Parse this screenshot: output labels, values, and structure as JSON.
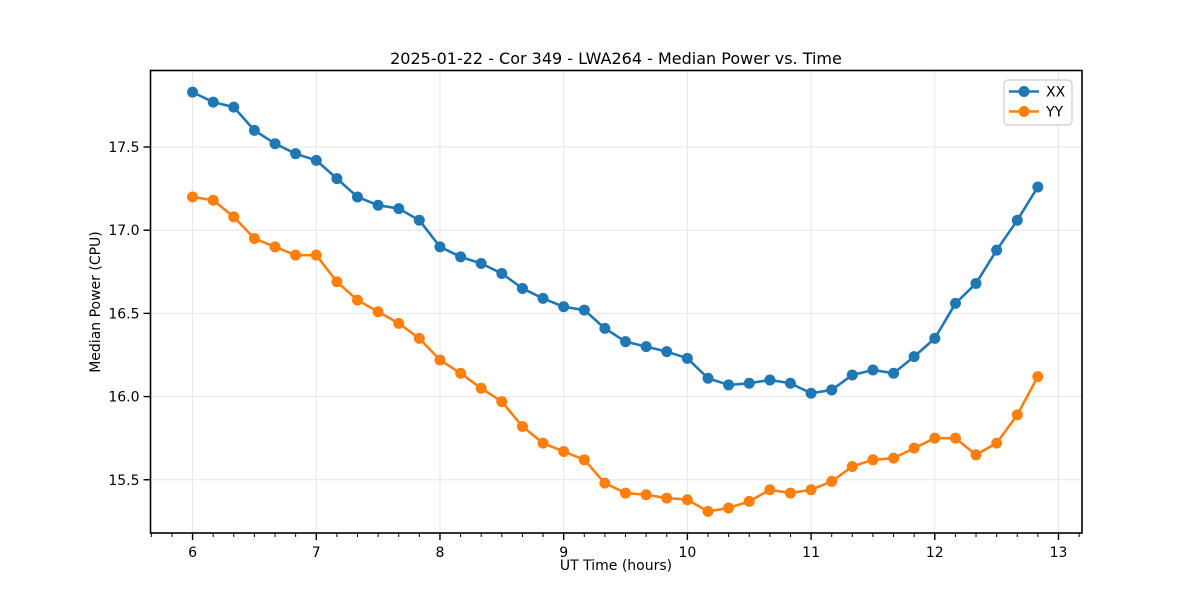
{
  "figure": {
    "title": "2025-01-22 - Cor 349 - LWA264 - Median Power vs. Time",
    "xlabel": "UT Time (hours)",
    "ylabel": "Median Power (CPU)"
  },
  "style": {
    "background": "#ffffff",
    "grid_color": "#e6e6e6",
    "spine_color": "#000000",
    "text_color": "#000000",
    "legend_border_color": "#cccccc",
    "legend_bg": "#ffffff"
  },
  "chart_data": {
    "type": "line",
    "title": "2025-01-22 - Cor 349 - LWA264 - Median Power vs. Time",
    "xlabel": "UT Time (hours)",
    "ylabel": "Median Power (CPU)",
    "xlim": [
      5.66,
      13.19
    ],
    "ylim": [
      15.18,
      17.96
    ],
    "x_ticks": [
      6,
      7,
      8,
      9,
      10,
      11,
      12,
      13
    ],
    "x_tick_labels": [
      "6",
      "7",
      "8",
      "9",
      "10",
      "11",
      "12",
      "13"
    ],
    "y_ticks": [
      15.5,
      16.0,
      16.5,
      17.0,
      17.5
    ],
    "y_tick_labels": [
      "15.5",
      "16.0",
      "16.5",
      "17.0",
      "17.5"
    ],
    "x_minor_step": 0.1666667,
    "grid": true,
    "legend_position": "upper-right",
    "x": [
      6.0,
      6.167,
      6.333,
      6.5,
      6.667,
      6.833,
      7.0,
      7.167,
      7.333,
      7.5,
      7.667,
      7.833,
      8.0,
      8.167,
      8.333,
      8.5,
      8.667,
      8.833,
      9.0,
      9.167,
      9.333,
      9.5,
      9.667,
      9.833,
      10.0,
      10.167,
      10.333,
      10.5,
      10.667,
      10.833,
      11.0,
      11.167,
      11.333,
      11.5,
      11.667,
      11.833,
      12.0,
      12.167,
      12.333,
      12.5,
      12.667,
      12.833
    ],
    "series": [
      {
        "name": "XX",
        "color": "#1f77b4",
        "values": [
          17.83,
          17.77,
          17.74,
          17.6,
          17.52,
          17.46,
          17.42,
          17.31,
          17.2,
          17.15,
          17.13,
          17.06,
          16.9,
          16.84,
          16.8,
          16.74,
          16.65,
          16.59,
          16.54,
          16.52,
          16.41,
          16.33,
          16.3,
          16.27,
          16.23,
          16.11,
          16.07,
          16.08,
          16.1,
          16.08,
          16.02,
          16.04,
          16.13,
          16.16,
          16.14,
          16.24,
          16.35,
          16.56,
          16.68,
          16.88,
          17.06,
          17.26
        ]
      },
      {
        "name": "YY",
        "color": "#ff7f0e",
        "values": [
          17.2,
          17.18,
          17.08,
          16.95,
          16.9,
          16.85,
          16.85,
          16.69,
          16.58,
          16.51,
          16.44,
          16.35,
          16.22,
          16.14,
          16.05,
          15.97,
          15.82,
          15.72,
          15.67,
          15.62,
          15.48,
          15.42,
          15.41,
          15.39,
          15.38,
          15.31,
          15.33,
          15.37,
          15.44,
          15.42,
          15.44,
          15.49,
          15.58,
          15.62,
          15.63,
          15.69,
          15.75,
          15.75,
          15.65,
          15.72,
          15.89,
          16.12
        ]
      }
    ]
  }
}
